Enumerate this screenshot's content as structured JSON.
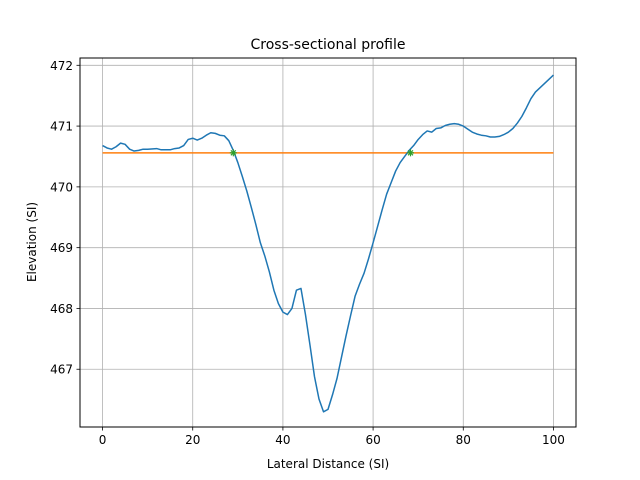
{
  "chart_data": {
    "type": "line",
    "title": "Cross-sectional profile",
    "xlabel": "Lateral Distance (SI)",
    "ylabel": "Elevation (SI)",
    "xlim": [
      -5,
      105
    ],
    "ylim": [
      466.05,
      472.12
    ],
    "xticks": [
      0,
      20,
      40,
      60,
      80,
      100
    ],
    "yticks": [
      467,
      468,
      469,
      470,
      471,
      472
    ],
    "grid": true,
    "colors": {
      "profile": "#1f77b4",
      "water": "#ff7f0e",
      "intersections": "#2ca02c"
    },
    "series": [
      {
        "key": "profile",
        "values": [
          [
            0,
            470.68
          ],
          [
            1,
            470.64
          ],
          [
            2,
            470.62
          ],
          [
            3,
            470.66
          ],
          [
            4,
            470.72
          ],
          [
            5,
            470.7
          ],
          [
            6,
            470.62
          ],
          [
            7,
            470.59
          ],
          [
            8,
            470.6
          ],
          [
            9,
            470.62
          ],
          [
            10,
            470.62
          ],
          [
            12,
            470.63
          ],
          [
            13,
            470.61
          ],
          [
            15,
            470.61
          ],
          [
            16,
            470.63
          ],
          [
            17,
            470.64
          ],
          [
            18,
            470.68
          ],
          [
            19,
            470.78
          ],
          [
            20,
            470.8
          ],
          [
            21,
            470.77
          ],
          [
            22,
            470.8
          ],
          [
            23,
            470.85
          ],
          [
            24,
            470.89
          ],
          [
            25,
            470.88
          ],
          [
            26,
            470.85
          ],
          [
            27,
            470.84
          ],
          [
            28,
            470.76
          ],
          [
            29,
            470.6
          ],
          [
            30,
            470.4
          ],
          [
            31,
            470.17
          ],
          [
            32,
            469.93
          ],
          [
            33,
            469.66
          ],
          [
            34,
            469.38
          ],
          [
            35,
            469.08
          ],
          [
            36,
            468.86
          ],
          [
            37,
            468.6
          ],
          [
            38,
            468.3
          ],
          [
            39,
            468.08
          ],
          [
            40,
            467.94
          ],
          [
            41,
            467.9
          ],
          [
            42,
            468.0
          ],
          [
            43,
            468.3
          ],
          [
            44,
            468.33
          ],
          [
            45,
            467.9
          ],
          [
            46,
            467.4
          ],
          [
            47,
            466.88
          ],
          [
            48,
            466.51
          ],
          [
            49,
            466.3
          ],
          [
            50,
            466.34
          ],
          [
            51,
            466.58
          ],
          [
            52,
            466.85
          ],
          [
            53,
            467.2
          ],
          [
            54,
            467.55
          ],
          [
            55,
            467.88
          ],
          [
            56,
            468.2
          ],
          [
            57,
            468.4
          ],
          [
            58,
            468.58
          ],
          [
            59,
            468.82
          ],
          [
            60,
            469.08
          ],
          [
            61,
            469.35
          ],
          [
            62,
            469.62
          ],
          [
            63,
            469.88
          ],
          [
            64,
            470.07
          ],
          [
            65,
            470.26
          ],
          [
            66,
            470.4
          ],
          [
            67,
            470.5
          ],
          [
            68,
            470.6
          ],
          [
            69,
            470.68
          ],
          [
            70,
            470.78
          ],
          [
            71,
            470.86
          ],
          [
            72,
            470.92
          ],
          [
            73,
            470.9
          ],
          [
            74,
            470.96
          ],
          [
            75,
            470.97
          ],
          [
            76,
            471.01
          ],
          [
            77,
            471.03
          ],
          [
            78,
            471.04
          ],
          [
            79,
            471.03
          ],
          [
            80,
            471.0
          ],
          [
            81,
            470.95
          ],
          [
            82,
            470.9
          ],
          [
            83,
            470.87
          ],
          [
            84,
            470.85
          ],
          [
            85,
            470.84
          ],
          [
            86,
            470.82
          ],
          [
            87,
            470.82
          ],
          [
            88,
            470.83
          ],
          [
            89,
            470.86
          ],
          [
            90,
            470.9
          ],
          [
            91,
            470.96
          ],
          [
            92,
            471.05
          ],
          [
            93,
            471.16
          ],
          [
            94,
            471.3
          ],
          [
            95,
            471.45
          ],
          [
            96,
            471.56
          ],
          [
            97,
            471.63
          ],
          [
            98,
            471.7
          ],
          [
            99,
            471.77
          ],
          [
            100,
            471.84
          ]
        ]
      },
      {
        "key": "water",
        "values": [
          [
            0,
            470.56
          ],
          [
            100,
            470.56
          ]
        ]
      }
    ],
    "markers": [
      {
        "key": "intersections",
        "values": [
          [
            29,
            470.56
          ],
          [
            68.3,
            470.56
          ]
        ]
      }
    ]
  }
}
